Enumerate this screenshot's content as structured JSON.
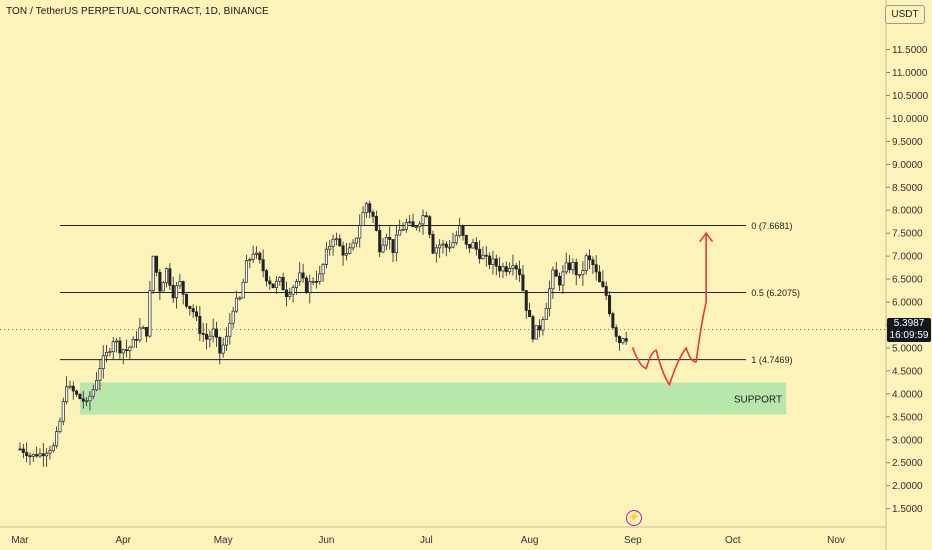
{
  "header": {
    "title": "TON / TetherUS PERPETUAL CONTRACT, 1D, BINANCE",
    "currency_button": "USDT"
  },
  "price_tag": {
    "price": "5.3987",
    "countdown": "16:09:59"
  },
  "logo_icon": "lightning-bolt-icon",
  "chart_data": {
    "type": "candlestick",
    "symbol": "TON / TetherUS PERPETUAL CONTRACT",
    "interval": "1D",
    "exchange": "BINANCE",
    "y_ticks": [
      "11.5000",
      "11.0000",
      "10.5000",
      "10.0000",
      "9.5000",
      "9.0000",
      "8.5000",
      "8.0000",
      "7.5000",
      "7.0000",
      "6.5000",
      "6.0000",
      "5.5000",
      "5.0000",
      "4.5000",
      "4.0000",
      "3.5000",
      "3.0000",
      "2.5000",
      "2.0000",
      "1.5000"
    ],
    "y_tick_values": [
      11.5,
      11.0,
      10.5,
      10.0,
      9.5,
      9.0,
      8.5,
      8.0,
      7.5,
      7.0,
      6.5,
      6.0,
      5.5,
      5.0,
      4.5,
      4.0,
      3.5,
      3.0,
      2.5,
      2.0,
      1.5
    ],
    "ylim": [
      1.1,
      12.1
    ],
    "x_ticks": [
      "Mar",
      "Apr",
      "May",
      "Jun",
      "Jul",
      "Aug",
      "Sep",
      "Oct",
      "Nov"
    ],
    "x_tick_days": [
      0,
      31,
      61,
      92,
      122,
      153,
      184,
      214,
      245
    ],
    "xlim_days": [
      -6,
      260
    ],
    "last_price": 5.3987,
    "fib_levels": [
      {
        "label": "0 (7.6681)",
        "value": 7.6681
      },
      {
        "label": "0.5 (6.2075)",
        "value": 6.2075
      },
      {
        "label": "1 (4.7469)",
        "value": 4.7469
      }
    ],
    "support_zone": {
      "label": "SUPPORT",
      "low": 3.55,
      "high": 4.25,
      "start_day": 18,
      "end_day": 230
    },
    "projection": [
      [
        184,
        5.0
      ],
      [
        188,
        4.55
      ],
      [
        191,
        4.95
      ],
      [
        195,
        4.2
      ],
      [
        200,
        5.0
      ],
      [
        203,
        4.7
      ],
      [
        206,
        6.0
      ],
      [
        206,
        7.5
      ]
    ],
    "anchor_closes": [
      [
        0,
        2.8
      ],
      [
        3,
        2.65
      ],
      [
        7,
        2.7
      ],
      [
        10,
        2.85
      ],
      [
        12,
        3.4
      ],
      [
        14,
        4.2
      ],
      [
        16,
        4.05
      ],
      [
        18,
        3.9
      ],
      [
        20,
        3.8
      ],
      [
        22,
        4.1
      ],
      [
        24,
        4.6
      ],
      [
        26,
        4.85
      ],
      [
        28,
        5.2
      ],
      [
        30,
        5.0
      ],
      [
        32,
        4.95
      ],
      [
        34,
        5.1
      ],
      [
        36,
        5.4
      ],
      [
        38,
        5.35
      ],
      [
        40,
        7.0
      ],
      [
        42,
        6.3
      ],
      [
        44,
        6.7
      ],
      [
        46,
        6.2
      ],
      [
        48,
        6.4
      ],
      [
        50,
        6.0
      ],
      [
        52,
        5.8
      ],
      [
        54,
        5.4
      ],
      [
        56,
        5.2
      ],
      [
        58,
        5.35
      ],
      [
        60,
        4.9
      ],
      [
        62,
        5.2
      ],
      [
        64,
        5.9
      ],
      [
        66,
        6.05
      ],
      [
        68,
        6.8
      ],
      [
        70,
        7.1
      ],
      [
        72,
        6.85
      ],
      [
        74,
        6.55
      ],
      [
        76,
        6.35
      ],
      [
        78,
        6.45
      ],
      [
        80,
        6.2
      ],
      [
        82,
        6.35
      ],
      [
        84,
        6.55
      ],
      [
        86,
        6.3
      ],
      [
        88,
        6.5
      ],
      [
        90,
        6.55
      ],
      [
        92,
        7.05
      ],
      [
        94,
        7.45
      ],
      [
        96,
        7.2
      ],
      [
        98,
        7.0
      ],
      [
        100,
        7.2
      ],
      [
        102,
        7.7
      ],
      [
        104,
        8.15
      ],
      [
        106,
        7.85
      ],
      [
        108,
        7.2
      ],
      [
        110,
        7.5
      ],
      [
        112,
        7.15
      ],
      [
        114,
        7.55
      ],
      [
        116,
        7.7
      ],
      [
        118,
        7.6
      ],
      [
        120,
        7.8
      ],
      [
        122,
        7.95
      ],
      [
        124,
        7.15
      ],
      [
        126,
        7.25
      ],
      [
        128,
        7.2
      ],
      [
        130,
        7.3
      ],
      [
        132,
        7.6
      ],
      [
        134,
        7.2
      ],
      [
        136,
        7.25
      ],
      [
        138,
        7.05
      ],
      [
        140,
        6.9
      ],
      [
        142,
        6.85
      ],
      [
        144,
        6.75
      ],
      [
        146,
        6.75
      ],
      [
        148,
        6.9
      ],
      [
        150,
        6.65
      ],
      [
        152,
        5.9
      ],
      [
        154,
        5.3
      ],
      [
        156,
        5.45
      ],
      [
        158,
        5.95
      ],
      [
        160,
        6.6
      ],
      [
        162,
        6.45
      ],
      [
        164,
        6.75
      ],
      [
        166,
        6.8
      ],
      [
        168,
        6.5
      ],
      [
        170,
        6.95
      ],
      [
        172,
        6.8
      ],
      [
        174,
        6.4
      ],
      [
        176,
        6.15
      ],
      [
        178,
        5.5
      ],
      [
        180,
        5.15
      ],
      [
        182,
        5.4
      ]
    ]
  }
}
